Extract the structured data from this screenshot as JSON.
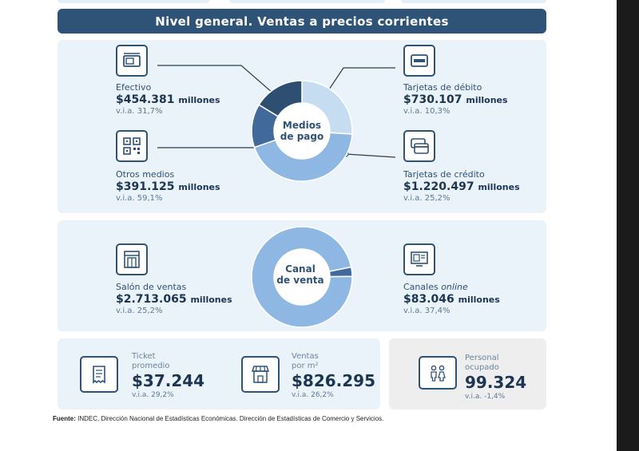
{
  "title": "Nivel general. Ventas a precios corrientes",
  "payment": {
    "center_line1": "Medios",
    "center_line2": "de pago",
    "efectivo": {
      "label": "Efectivo",
      "value": "$454.381",
      "unit": "millones",
      "via": "v.i.a. 31,7%",
      "icon": "cash-icon"
    },
    "otros": {
      "label": "Otros medios",
      "value": "$391.125",
      "unit": "millones",
      "via": "v.i.a. 59,1%",
      "icon": "qr-code-icon"
    },
    "debito": {
      "label": "Tarjetas de débito",
      "value": "$730.107",
      "unit": "millones",
      "via": "v.i.a. 10,3%",
      "icon": "debit-card-icon"
    },
    "credito": {
      "label": "Tarjetas de crédito",
      "value": "$1.220.497",
      "unit": "millones",
      "via": "v.i.a. 25,2%",
      "icon": "credit-cards-icon"
    },
    "shares": [
      0.163,
      0.14,
      0.26,
      0.437
    ]
  },
  "channel": {
    "center_line1": "Canal",
    "center_line2": "de venta",
    "salon": {
      "label": "Salón de ventas",
      "value": "$2.713.065",
      "unit": "millones",
      "via": "v.i.a. 25,2%",
      "icon": "store-door-icon"
    },
    "online": {
      "label_prefix": "Canales ",
      "label_em": "online",
      "value": "$83.046",
      "unit": "millones",
      "via": "v.i.a. 37,4%",
      "icon": "online-screen-icon"
    },
    "shares": [
      0.97,
      0.03
    ]
  },
  "ticket": {
    "label1": "Ticket",
    "label2": "promedio",
    "value": "$37.244",
    "via": "v.i.a. 29,2%",
    "icon": "receipt-icon"
  },
  "ventas_m2": {
    "label1": "Ventas",
    "label2": "por m²",
    "value": "$826.295",
    "via": "v.i.a. 26,2%",
    "icon": "shop-front-icon"
  },
  "personal": {
    "label1": "Personal",
    "label2": "ocupado",
    "value": "99.324",
    "via": "v.i.a. -1,4%",
    "icon": "people-icon"
  },
  "source": {
    "prefix": "Fuente:",
    "text": " INDEC, Dirección Nacional de Estadísticas Económicas. Dirección de Estadísticas de Comercio y Servicios."
  },
  "colors": {
    "navy": "#2f5277",
    "light": "#c6dcf1",
    "mid": "#8fb7e3",
    "dark": "#41699a",
    "panel": "#eaf2fa"
  }
}
